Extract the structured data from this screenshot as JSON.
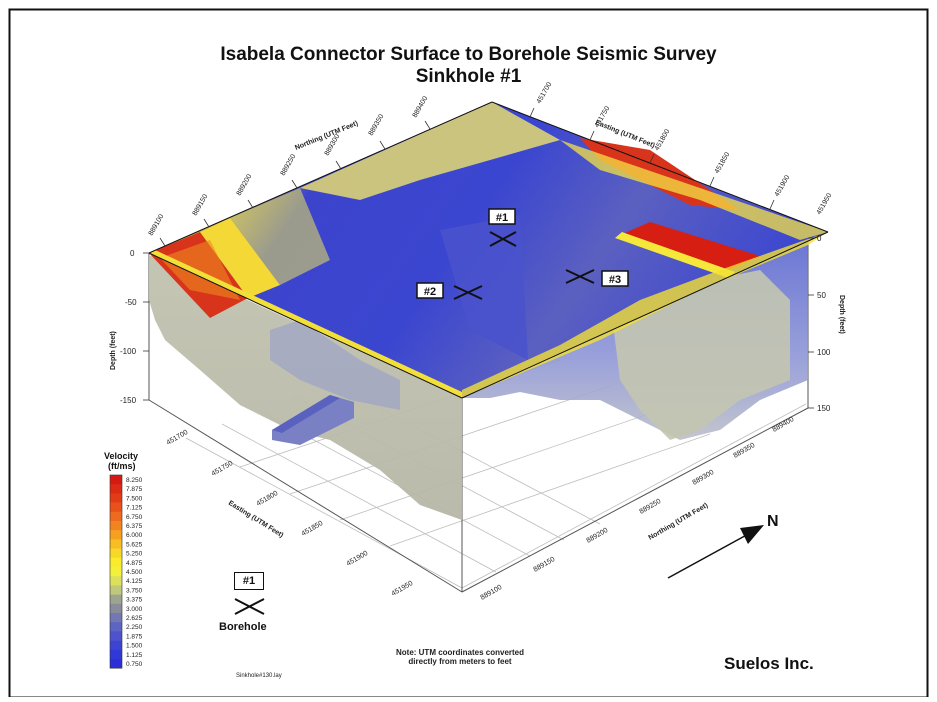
{
  "title": "Isabela Connector Surface to Borehole Seismic Survey",
  "subtitle": "Sinkhole #1",
  "legend": {
    "title_line1": "Velocity",
    "title_line2": "(ft/ms)",
    "values": [
      "8.250",
      "7.875",
      "7.500",
      "7.125",
      "6.750",
      "6.375",
      "6.000",
      "5.625",
      "5.250",
      "4.875",
      "4.500",
      "4.125",
      "3.750",
      "3.375",
      "3.000",
      "2.625",
      "2.250",
      "1.875",
      "1.500",
      "1.125",
      "0.750"
    ],
    "colors": [
      "#d41a12",
      "#dc2a14",
      "#e23c16",
      "#e8521a",
      "#ee6a1e",
      "#f2841f",
      "#f5a020",
      "#f7bd22",
      "#f8d826",
      "#f8ec2c",
      "#f2f03a",
      "#dde05a",
      "#c0c87a",
      "#9ea58f",
      "#8a8c9c",
      "#7478b2",
      "#5e64c2",
      "#4e52cc",
      "#3e44d2",
      "#3038d6",
      "#2a30d6"
    ]
  },
  "borehole_legend": {
    "tag": "#1",
    "label": "Borehole"
  },
  "boreholes": [
    {
      "tag": "#1"
    },
    {
      "tag": "#2"
    },
    {
      "tag": "#3"
    }
  ],
  "axes": {
    "northing_top_title": "Northing (UTM Feet)",
    "easting_top_title": "Easting (UTM Feet)",
    "easting_bottom_title": "Easting (UTM Feet)",
    "northing_bottom_title": "Northing (UTM Feet)",
    "depth_left_title": "Depth (feet)",
    "depth_right_title": "Depth (feet)",
    "northing_top_ticks": [
      "889100",
      "889150",
      "889200",
      "889250",
      "889300",
      "889350",
      "889400"
    ],
    "easting_top_ticks": [
      "451700",
      "451750",
      "451800",
      "451850",
      "451900",
      "451950"
    ],
    "easting_bottom_ticks": [
      "451700",
      "451750",
      "451800",
      "451850",
      "451900",
      "451950"
    ],
    "northing_bottom_ticks": [
      "889100",
      "889150",
      "889200",
      "889250",
      "889300",
      "889350",
      "889400"
    ],
    "depth_left_ticks": [
      "0",
      "-50",
      "-100",
      "-150"
    ],
    "depth_right_ticks": [
      "0",
      "50",
      "100",
      "150"
    ]
  },
  "north_arrow_label": "N",
  "note_line1": "Note: UTM coordinates converted",
  "note_line2": "directly from meters to feet",
  "company": "Suelos Inc.",
  "filename": "Sinkhole#130.lay",
  "chart_data": {
    "type": "heatmap",
    "title": "Isabela Connector Surface to Borehole Seismic Survey",
    "subtitle": "Sinkhole #1",
    "colorbar_label": "Velocity (ft/ms)",
    "colorbar_range": [
      0.75,
      8.25
    ],
    "colorbar_ticks": [
      8.25,
      7.875,
      7.5,
      7.125,
      6.75,
      6.375,
      6.0,
      5.625,
      5.25,
      4.875,
      4.5,
      4.125,
      3.75,
      3.375,
      3.0,
      2.625,
      2.25,
      1.875,
      1.5,
      1.125,
      0.75
    ],
    "easting_range": [
      451700,
      451950
    ],
    "northing_range": [
      889100,
      889400
    ],
    "depth_range": [
      0,
      150
    ],
    "grid": true
  }
}
